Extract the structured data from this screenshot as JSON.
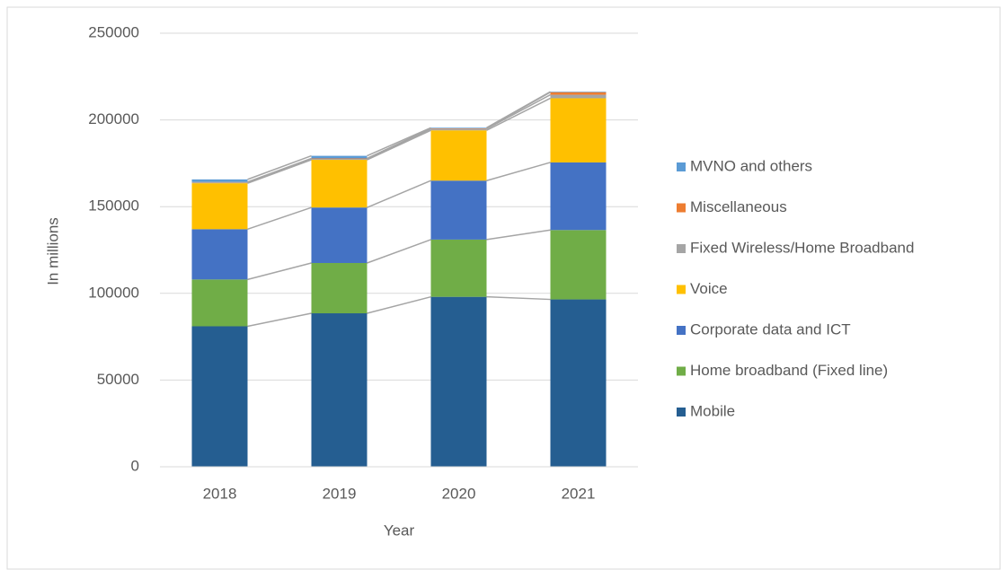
{
  "chart_data": {
    "type": "bar",
    "stacked": true,
    "x_label": "Year",
    "y_label": "In millions",
    "categories": [
      "2018",
      "2019",
      "2020",
      "2021"
    ],
    "series": [
      {
        "name": "Mobile",
        "color": "#255e91",
        "values": [
          81000,
          88500,
          98000,
          96500
        ]
      },
      {
        "name": "Home broadband (Fixed line)",
        "color": "#70ad47",
        "values": [
          27000,
          29000,
          33000,
          40000
        ]
      },
      {
        "name": "Corporate data and ICT",
        "color": "#4472c4",
        "values": [
          29000,
          32000,
          34000,
          39000
        ]
      },
      {
        "name": "Voice",
        "color": "#ffc000",
        "values": [
          26500,
          27500,
          29000,
          37000
        ]
      },
      {
        "name": "Fixed Wireless/Home Broadband",
        "color": "#a5a5a5",
        "values": [
          500,
          500,
          800,
          2000
        ]
      },
      {
        "name": "Miscellaneous",
        "color": "#ed7d31",
        "values": [
          200,
          300,
          300,
          1500
        ]
      },
      {
        "name": "MVNO and others",
        "color": "#5b9bd5",
        "values": [
          1500,
          1500,
          400,
          300
        ]
      }
    ],
    "ylim": [
      0,
      250000
    ],
    "yticks": [
      0,
      50000,
      100000,
      150000,
      200000,
      250000
    ],
    "grid": true,
    "legend": "right"
  }
}
